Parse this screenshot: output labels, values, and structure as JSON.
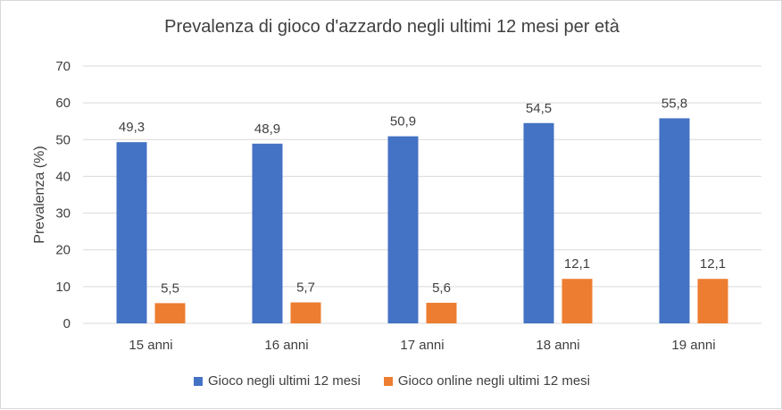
{
  "chart_data": {
    "type": "bar",
    "title": "Prevalenza di gioco d'azzardo negli ultimi 12 mesi per età",
    "xlabel": "",
    "ylabel": "Prevalenza (%)",
    "ylim": [
      0,
      70
    ],
    "yticks": [
      0,
      10,
      20,
      30,
      40,
      50,
      60,
      70
    ],
    "grid": true,
    "legend_position": "bottom",
    "categories": [
      "15 anni",
      "16 anni",
      "17 anni",
      "18 anni",
      "19 anni"
    ],
    "series": [
      {
        "name": "Gioco negli ultimi 12 mesi",
        "color": "#4472c4",
        "values": [
          49.3,
          48.9,
          50.9,
          54.5,
          55.8
        ],
        "labels": [
          "49,3",
          "48,9",
          "50,9",
          "54,5",
          "55,8"
        ]
      },
      {
        "name": "Gioco online negli ultimi 12 mesi",
        "color": "#ed7d31",
        "values": [
          5.5,
          5.7,
          5.6,
          12.1,
          12.1
        ],
        "labels": [
          "5,5",
          "5,7",
          "5,6",
          "12,1",
          "12,1"
        ]
      }
    ]
  }
}
